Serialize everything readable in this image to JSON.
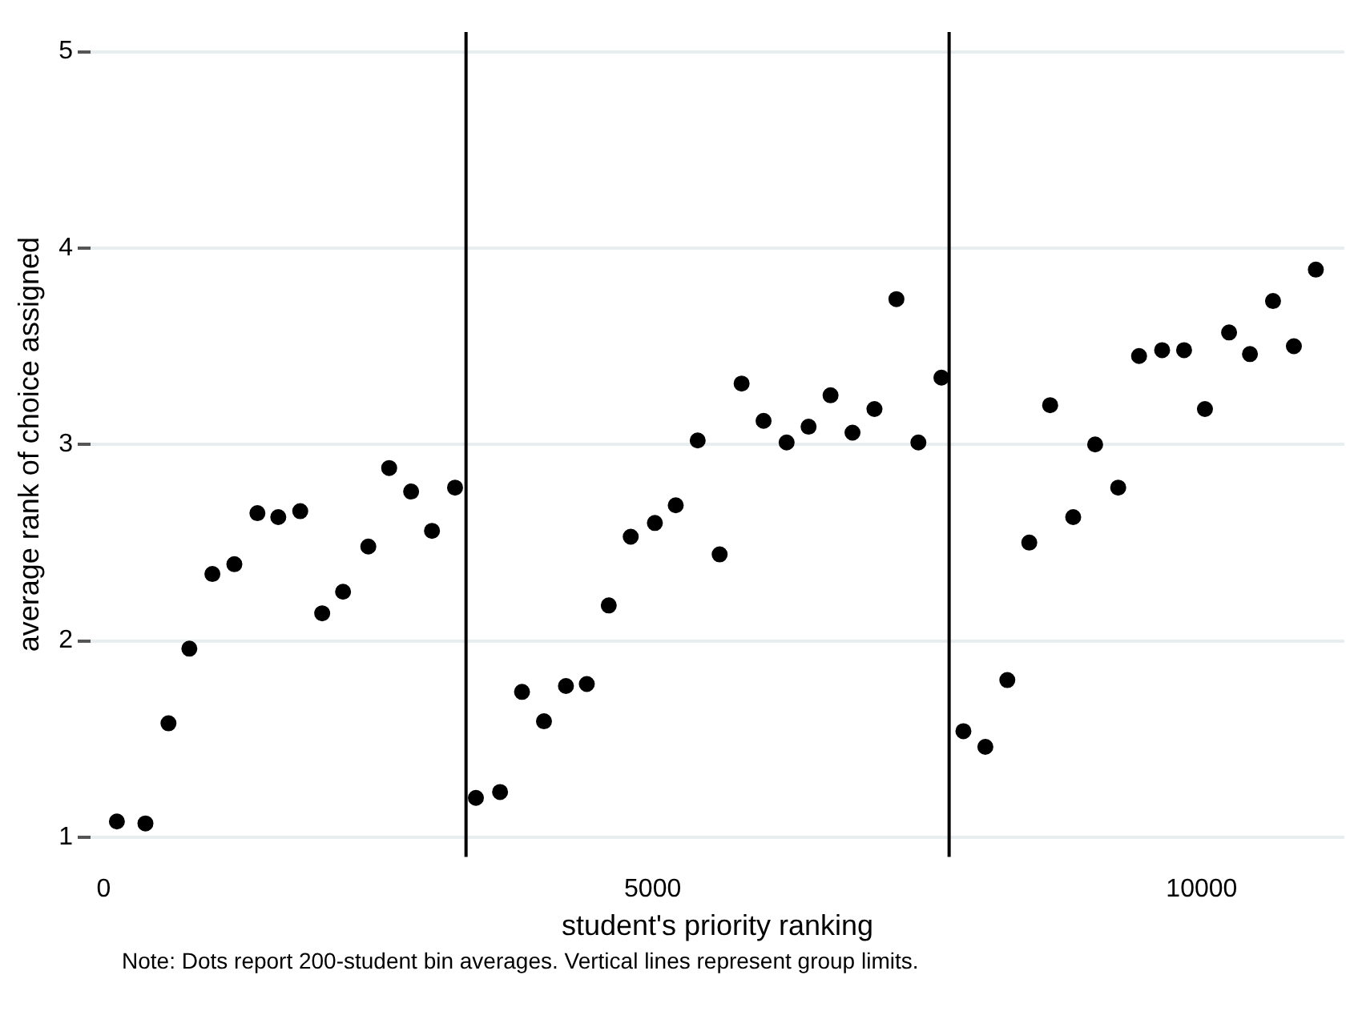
{
  "chart_data": {
    "type": "scatter",
    "xlabel": "student's priority ranking",
    "ylabel": "average rank of choice assigned",
    "annotations": [
      "Note: Dots report 200-student bin averages. Vertical lines represent group limits."
    ],
    "x": [
      120,
      380,
      590,
      780,
      990,
      1190,
      1400,
      1590,
      1790,
      1990,
      2180,
      2410,
      2600,
      2800,
      2990,
      3200,
      3390,
      3610,
      3810,
      4010,
      4210,
      4400,
      4600,
      4800,
      5020,
      5210,
      5410,
      5610,
      5810,
      6010,
      6220,
      6420,
      6620,
      6820,
      7020,
      7220,
      7420,
      7630,
      7830,
      8030,
      8230,
      8430,
      8620,
      8830,
      9030,
      9240,
      9430,
      9640,
      9840,
      10030,
      10250,
      10440,
      10650,
      10840,
      11040
    ],
    "series": [
      {
        "color": "#000000",
        "values": [
          1.08,
          1.07,
          1.58,
          1.96,
          2.34,
          2.39,
          2.65,
          2.63,
          2.66,
          2.14,
          2.25,
          2.48,
          2.88,
          2.76,
          2.56,
          2.78,
          1.2,
          1.23,
          1.74,
          1.59,
          1.77,
          1.78,
          2.18,
          2.53,
          2.6,
          2.69,
          3.02,
          2.44,
          3.31,
          3.12,
          3.01,
          3.09,
          3.25,
          3.06,
          3.18,
          3.74,
          3.01,
          3.34,
          1.54,
          1.46,
          1.8,
          2.5,
          3.2,
          2.63,
          3.0,
          2.78,
          3.45,
          3.48,
          3.48,
          3.18,
          3.57,
          3.46,
          3.73,
          3.5,
          3.89
        ]
      }
    ],
    "xlim": [
      -120,
      11300
    ],
    "xticks": [
      0,
      5000,
      10000
    ],
    "ylim": [
      0.9,
      5.1
    ],
    "yticks": [
      1,
      2,
      3,
      4,
      5
    ],
    "ref_lines": [
      {
        "axis": "x",
        "value": 3300,
        "color": "#000000"
      },
      {
        "axis": "x",
        "value": 7700,
        "color": "#000000"
      }
    ],
    "grid": "y",
    "legend": false,
    "marker": "circle"
  }
}
